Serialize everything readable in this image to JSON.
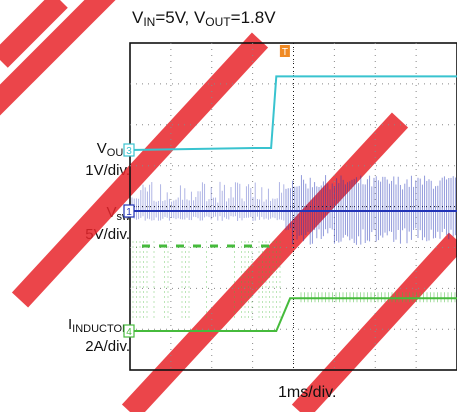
{
  "title": {
    "v_in_sym": "V",
    "v_in_sub": "IN",
    "v_in_val": "=5V, ",
    "v_out_sym": "V",
    "v_out_sub": "OUT",
    "v_out_val": "=1.8V"
  },
  "channels": [
    {
      "id": "ch3",
      "marker": "3",
      "sym": "V",
      "sub": "OUT",
      "scale": "1V/div.",
      "color": "#39c3cf"
    },
    {
      "id": "ch1",
      "marker": "1",
      "sym": "V",
      "sub": "sw",
      "scale": "5V/div.",
      "color": "#2233b6"
    },
    {
      "id": "ch4",
      "marker": "4",
      "sym": "I",
      "sub": "INDUCTOR",
      "scale": "2A/div.",
      "color": "#46bb3c"
    }
  ],
  "trigger_marker": "T",
  "timebase_label": "1ms/div.",
  "watermark_color": "#e8242a",
  "chart_data": {
    "type": "line",
    "title": "VIN=5V, VOUT=1.8V",
    "xlabel": "1ms/div.",
    "x_unit": "ms",
    "xlim": [
      -4.5,
      5
    ],
    "grid": true,
    "series": [
      {
        "name": "VOUT",
        "unit": "V",
        "scale_per_div": 1,
        "x": [
          -4.5,
          -0.8,
          -0.4,
          -0.25,
          5
        ],
        "y": [
          0,
          0.05,
          0.05,
          1.8,
          1.8
        ]
      },
      {
        "name": "Vsw",
        "unit": "V",
        "scale_per_div": 5,
        "x": [
          -4.5,
          -0.25,
          5
        ],
        "y": [
          0,
          0,
          0
        ]
      },
      {
        "name": "IINDUCTOR",
        "unit": "A",
        "scale_per_div": 2,
        "x": [
          -4.5,
          -0.25,
          0.15,
          5
        ],
        "y": [
          0,
          0,
          1.6,
          1.6
        ]
      }
    ]
  }
}
